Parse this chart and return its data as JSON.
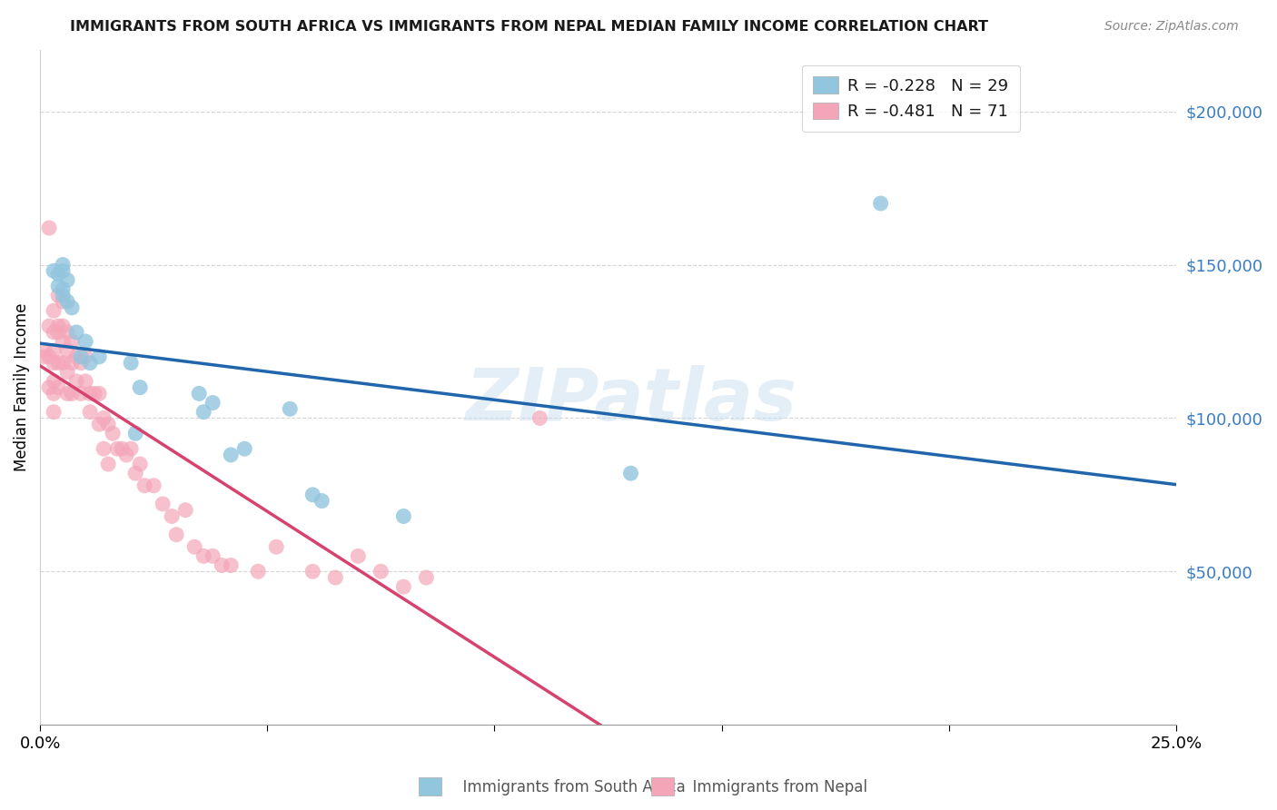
{
  "title": "IMMIGRANTS FROM SOUTH AFRICA VS IMMIGRANTS FROM NEPAL MEDIAN FAMILY INCOME CORRELATION CHART",
  "source": "Source: ZipAtlas.com",
  "ylabel": "Median Family Income",
  "xlim": [
    0.0,
    0.25
  ],
  "ylim": [
    0,
    220000
  ],
  "yticks": [
    50000,
    100000,
    150000,
    200000
  ],
  "ytick_labels": [
    "$50,000",
    "$100,000",
    "$150,000",
    "$200,000"
  ],
  "xticks": [
    0.0,
    0.05,
    0.1,
    0.15,
    0.2,
    0.25
  ],
  "xtick_labels": [
    "0.0%",
    "",
    "",
    "",
    "",
    "25.0%"
  ],
  "legend_r1": "R = -0.228",
  "legend_n1": "N = 29",
  "legend_r2": "R = -0.481",
  "legend_n2": "N = 71",
  "color_blue": "#92c5de",
  "color_pink": "#f4a6b8",
  "color_blue_line": "#2166ac",
  "color_pink_line": "#d6436e",
  "color_pink_line_dashed": "#e8b4c5",
  "watermark": "ZIPatlas",
  "south_africa_x": [
    0.003,
    0.004,
    0.004,
    0.005,
    0.005,
    0.005,
    0.005,
    0.006,
    0.006,
    0.007,
    0.008,
    0.009,
    0.01,
    0.011,
    0.013,
    0.02,
    0.021,
    0.022,
    0.035,
    0.036,
    0.038,
    0.042,
    0.045,
    0.055,
    0.06,
    0.062,
    0.08,
    0.13,
    0.185
  ],
  "south_africa_y": [
    148000,
    147000,
    143000,
    150000,
    148000,
    142000,
    140000,
    145000,
    138000,
    136000,
    128000,
    120000,
    125000,
    118000,
    120000,
    118000,
    95000,
    110000,
    108000,
    102000,
    105000,
    88000,
    90000,
    103000,
    75000,
    73000,
    68000,
    82000,
    170000
  ],
  "nepal_x": [
    0.001,
    0.001,
    0.002,
    0.002,
    0.002,
    0.002,
    0.003,
    0.003,
    0.003,
    0.003,
    0.003,
    0.003,
    0.003,
    0.004,
    0.004,
    0.004,
    0.004,
    0.004,
    0.005,
    0.005,
    0.005,
    0.005,
    0.006,
    0.006,
    0.006,
    0.006,
    0.007,
    0.007,
    0.007,
    0.008,
    0.008,
    0.009,
    0.009,
    0.01,
    0.01,
    0.011,
    0.011,
    0.012,
    0.013,
    0.013,
    0.014,
    0.014,
    0.015,
    0.015,
    0.016,
    0.017,
    0.018,
    0.019,
    0.02,
    0.021,
    0.022,
    0.023,
    0.025,
    0.027,
    0.029,
    0.03,
    0.032,
    0.034,
    0.036,
    0.038,
    0.04,
    0.042,
    0.048,
    0.052,
    0.06,
    0.065,
    0.07,
    0.075,
    0.08,
    0.085,
    0.11
  ],
  "nepal_y": [
    122000,
    120000,
    162000,
    130000,
    120000,
    110000,
    135000,
    128000,
    122000,
    118000,
    112000,
    108000,
    102000,
    140000,
    130000,
    128000,
    118000,
    110000,
    138000,
    130000,
    125000,
    118000,
    128000,
    122000,
    115000,
    108000,
    125000,
    118000,
    108000,
    120000,
    112000,
    118000,
    108000,
    120000,
    112000,
    108000,
    102000,
    108000,
    108000,
    98000,
    100000,
    90000,
    98000,
    85000,
    95000,
    90000,
    90000,
    88000,
    90000,
    82000,
    85000,
    78000,
    78000,
    72000,
    68000,
    62000,
    70000,
    58000,
    55000,
    55000,
    52000,
    52000,
    50000,
    58000,
    50000,
    48000,
    55000,
    50000,
    45000,
    48000,
    100000
  ]
}
